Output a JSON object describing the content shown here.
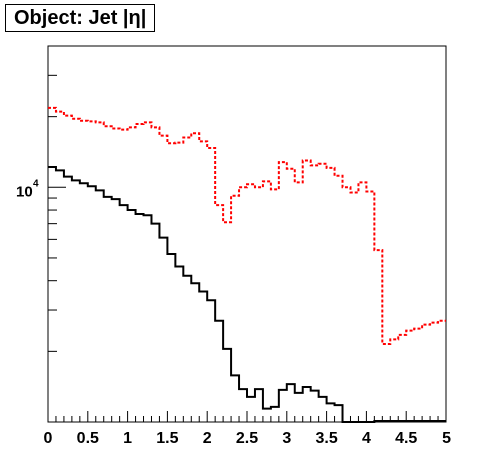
{
  "chart_data": {
    "type": "step",
    "title": "Object: Jet |η|",
    "xlabel": "",
    "ylabel": "",
    "xlim": [
      0,
      5
    ],
    "ylim": [
      1000,
      40000
    ],
    "yscale": "log",
    "bin_width": 0.1,
    "x_tick_labels": [
      "0",
      "0.5",
      "1",
      "1.5",
      "2",
      "2.5",
      "3",
      "3.5",
      "4",
      "4.5",
      "5"
    ],
    "y_tick_labels": [
      {
        "base": "10",
        "exponent": "4",
        "value": 10000
      }
    ],
    "grid": false,
    "series": [
      {
        "color": "#000000",
        "style": "solid",
        "values": [
          12200,
          11800,
          11100,
          10700,
          10400,
          10100,
          9700,
          9100,
          8900,
          8400,
          8000,
          7700,
          7600,
          7000,
          6100,
          5200,
          4600,
          4200,
          3900,
          3600,
          3300,
          2700,
          2050,
          1580,
          1380,
          1280,
          1380,
          1140,
          1160,
          1370,
          1450,
          1330,
          1410,
          1360,
          1280,
          1200,
          1180,
          990,
          800,
          800,
          1000,
          1010,
          1010,
          1010,
          1010,
          1010,
          1010,
          1010,
          1010,
          1010
        ]
      },
      {
        "color": "#ff0000",
        "style": "dashed",
        "values": [
          21800,
          21000,
          20200,
          19600,
          19200,
          19100,
          18900,
          18200,
          17800,
          17600,
          18000,
          18600,
          18900,
          18000,
          16600,
          15400,
          15500,
          16300,
          17000,
          15700,
          14700,
          8400,
          7100,
          9200,
          10000,
          10300,
          10000,
          10600,
          9800,
          12800,
          12000,
          10500,
          13000,
          12400,
          12600,
          12100,
          11200,
          10000,
          9500,
          10500,
          9600,
          5400,
          2150,
          2250,
          2350,
          2450,
          2500,
          2600,
          2650,
          2700
        ]
      }
    ]
  }
}
